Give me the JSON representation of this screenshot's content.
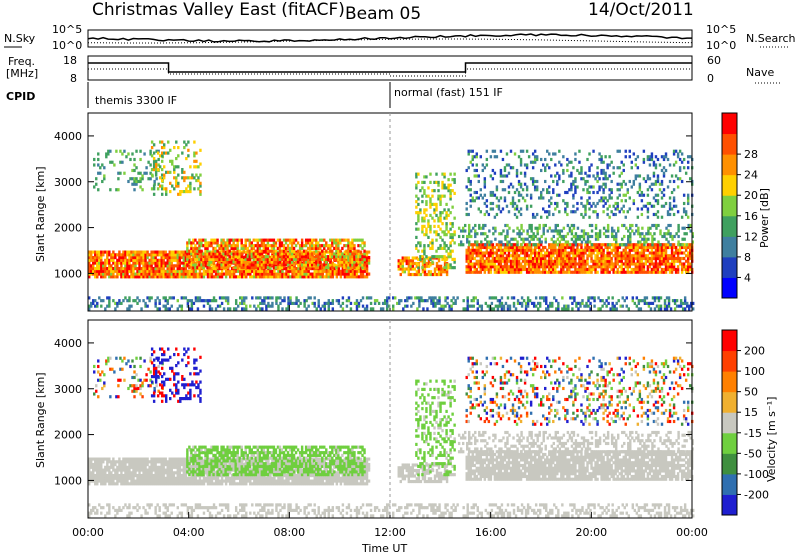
{
  "header": {
    "title": "Christmas Valley East (fitACF)",
    "beam": "Beam 05",
    "date": "14/Oct/2011"
  },
  "panels": {
    "nsky": {
      "label": "N.Sky",
      "tick_top": "10^5",
      "tick_bottom": "10^0",
      "right_label": "N.Search",
      "right_tick_top": "10^5",
      "right_tick_bottom": "10^0"
    },
    "freq": {
      "label": "Freq.",
      "unit": "[MHz]",
      "tick_top": "18",
      "tick_bottom": "8",
      "right_label": "Nave",
      "right_tick_top": "60",
      "right_tick_bottom": "0"
    },
    "cpid": {
      "label": "CPID",
      "entries": [
        {
          "text": "themis 3300 IF",
          "start_hour": 0
        },
        {
          "text": "normal (fast) 151 IF",
          "start_hour": 12
        }
      ]
    }
  },
  "chart_data": [
    {
      "type": "heatmap",
      "name": "power",
      "ylabel": "Slant Range [km]",
      "xlabel": "Time UT",
      "xlim": [
        0,
        24
      ],
      "ylim": [
        180,
        4500
      ],
      "xticks": [
        "00:00",
        "04:00",
        "08:00",
        "12:00",
        "16:00",
        "20:00",
        "00:00"
      ],
      "yticks": [
        1000,
        2000,
        3000,
        4000
      ],
      "colorbar": {
        "label": "Power [dB]",
        "ticks": [
          4,
          8,
          12,
          16,
          20,
          24,
          28
        ],
        "range": [
          0,
          30
        ],
        "colors": [
          "#0000ff",
          "#1f3fbf",
          "#3f7f9f",
          "#3fa05f",
          "#7fcf3f",
          "#ffd000",
          "#ff9000",
          "#ff5000",
          "#ff0000"
        ]
      }
    },
    {
      "type": "heatmap",
      "name": "velocity",
      "ylabel": "Slant Range [km]",
      "xlabel": "Time UT",
      "xlim": [
        0,
        24
      ],
      "ylim": [
        180,
        4500
      ],
      "xticks": [
        "00:00",
        "04:00",
        "08:00",
        "12:00",
        "16:00",
        "20:00",
        "00:00"
      ],
      "yticks": [
        1000,
        2000,
        3000,
        4000
      ],
      "colorbar": {
        "label": "Velocity [m s⁻¹]",
        "ticks": [
          200,
          100,
          50,
          15,
          -15,
          -50,
          -100,
          -200
        ],
        "colors": [
          "#1f1fd0",
          "#2f6fb0",
          "#3f8f3f",
          "#6fcf3f",
          "#c8c8c0",
          "#f0b030",
          "#ff8000",
          "#ff4000",
          "#ff0000"
        ]
      }
    }
  ],
  "colors": {
    "ground_scatter": "#c8c8c0",
    "frame": "#000000",
    "background": "#ffffff"
  }
}
